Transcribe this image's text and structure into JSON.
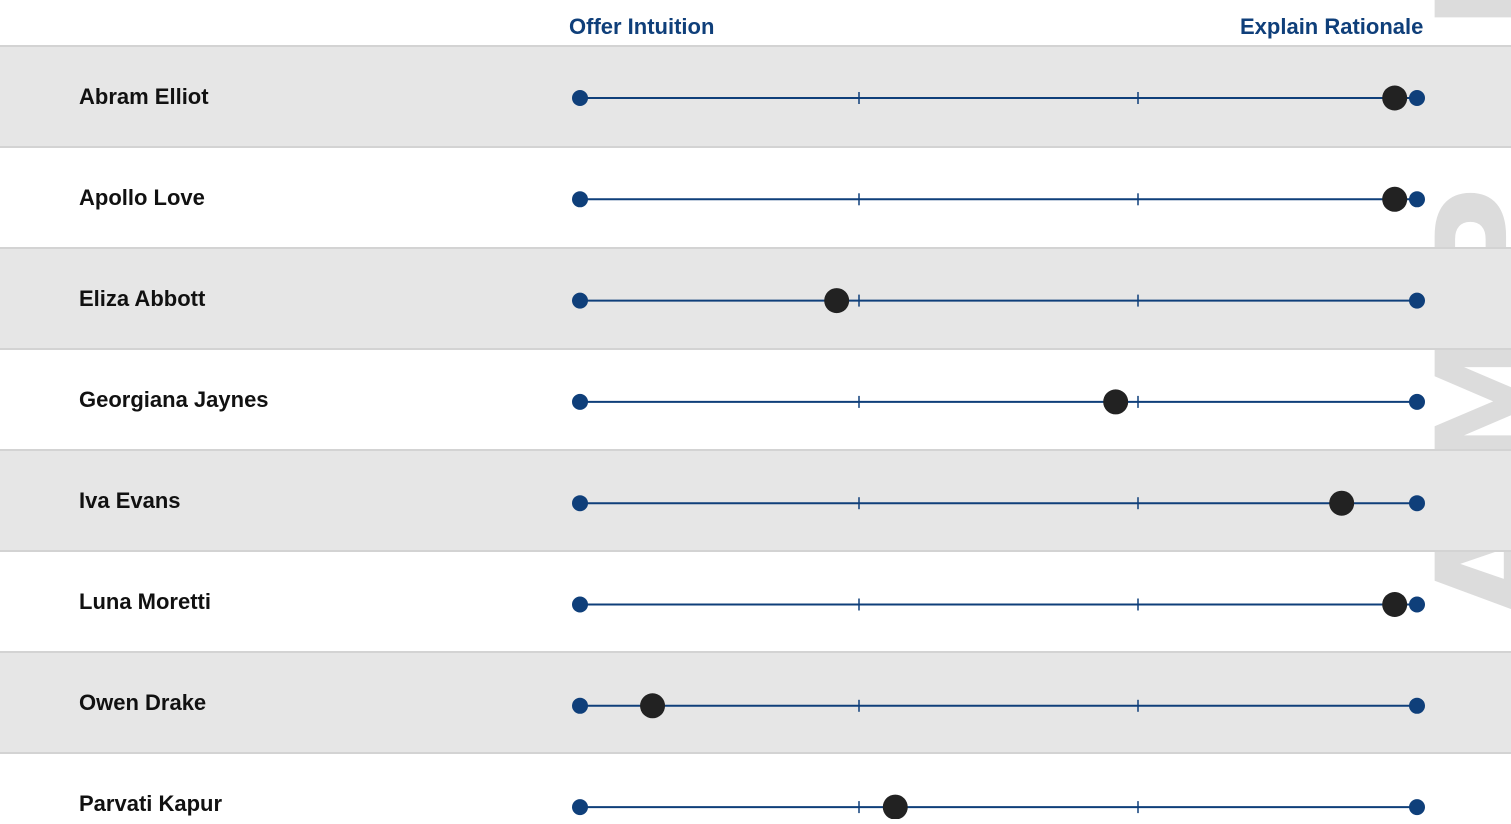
{
  "colors": {
    "header_text": "#0f3f7a",
    "scale_line": "#0f3f7a",
    "endpoint": "#0f3f7a",
    "marker": "#222222",
    "row_shade": "#e6e6e6",
    "watermark": "#dcdcdc"
  },
  "header": {
    "left_label": "Offer Intuition",
    "right_label": "Explain Rationale"
  },
  "watermark_text": "SAMPLE",
  "chart_data": {
    "type": "scatter",
    "title": "",
    "xlabel": "",
    "ylabel": "",
    "scale_left": "Offer Intuition",
    "scale_right": "Explain Rationale",
    "xlim": [
      0,
      3
    ],
    "ticks": [
      1,
      2
    ],
    "grid": false,
    "categories": [
      "Abram Elliot",
      "Apollo Love",
      "Eliza Abbott",
      "Georgiana Jaynes",
      "Iva Evans",
      "Luna Moretti",
      "Owen Drake",
      "Parvati Kapur"
    ],
    "values": [
      2.92,
      2.92,
      0.92,
      1.92,
      2.73,
      2.92,
      0.26,
      1.13
    ]
  }
}
